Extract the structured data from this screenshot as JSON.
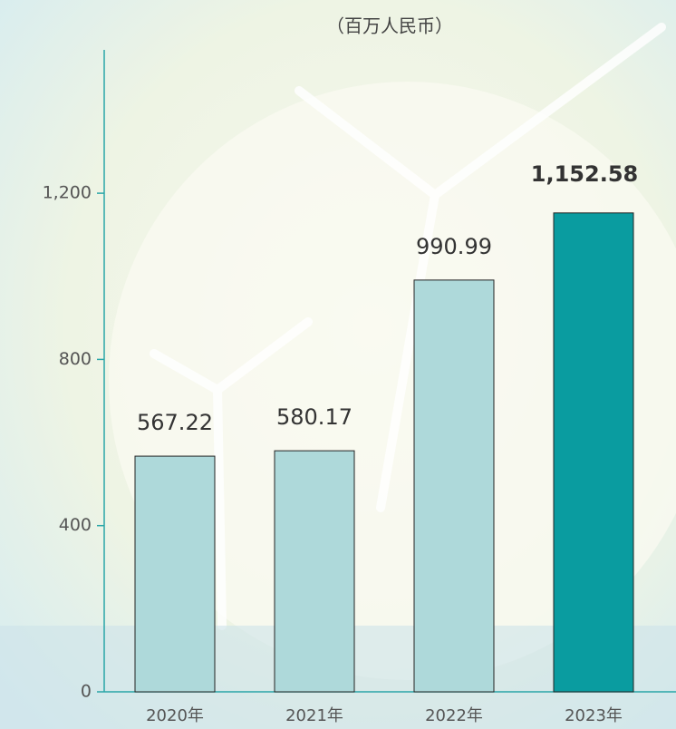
{
  "chart_data": {
    "type": "bar",
    "subtitle": "（百万人民币）",
    "categories": [
      "2020年",
      "2021年",
      "2022年",
      "2023年"
    ],
    "values": [
      567.22,
      580.17,
      990.99,
      1152.58
    ],
    "value_labels": [
      "567.22",
      "580.17",
      "990.99",
      "1,152.58"
    ],
    "colors": [
      "#aed9da",
      "#aed9da",
      "#aed9da",
      "#0a9ca0"
    ],
    "axis_color": "#2aa6a8",
    "ylim": [
      0,
      1545
    ],
    "yticks": [
      0,
      400,
      800,
      {
        "value": 1200,
        "label": "1,200"
      }
    ]
  }
}
